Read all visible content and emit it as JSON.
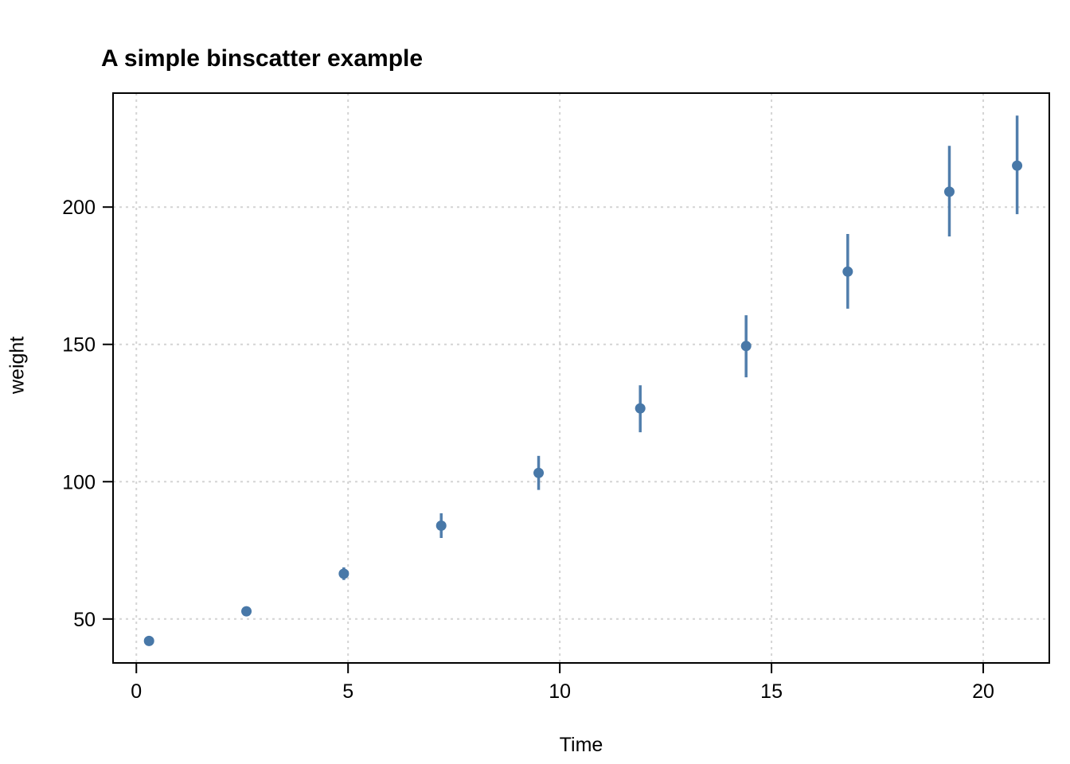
{
  "chart_data": {
    "type": "scatter",
    "title": "A simple binscatter example",
    "xlabel": "Time",
    "ylabel": "weight",
    "x_ticks": [
      0,
      5,
      10,
      15,
      20
    ],
    "y_ticks": [
      50,
      100,
      150,
      200
    ],
    "xlim": [
      -0.55,
      21.56
    ],
    "ylim": [
      34,
      241.5
    ],
    "grid": true,
    "legend": "none",
    "series": [
      {
        "name": "binned means with confidence intervals",
        "points": [
          {
            "x": 0.3,
            "y": 42.0,
            "ci_low": 41.4,
            "ci_high": 42.6
          },
          {
            "x": 2.6,
            "y": 52.8,
            "ci_low": 52.0,
            "ci_high": 53.6
          },
          {
            "x": 4.9,
            "y": 66.5,
            "ci_low": 64.2,
            "ci_high": 68.8
          },
          {
            "x": 7.2,
            "y": 84.0,
            "ci_low": 79.5,
            "ci_high": 88.5
          },
          {
            "x": 9.5,
            "y": 103.2,
            "ci_low": 97.0,
            "ci_high": 109.4
          },
          {
            "x": 11.9,
            "y": 126.7,
            "ci_low": 118.0,
            "ci_high": 135.1
          },
          {
            "x": 14.4,
            "y": 149.4,
            "ci_low": 138.0,
            "ci_high": 160.6
          },
          {
            "x": 16.8,
            "y": 176.5,
            "ci_low": 163.0,
            "ci_high": 190.2
          },
          {
            "x": 19.2,
            "y": 205.6,
            "ci_low": 189.3,
            "ci_high": 222.3
          },
          {
            "x": 20.8,
            "y": 215.1,
            "ci_low": 197.4,
            "ci_high": 233.3
          }
        ]
      }
    ],
    "colors": {
      "marker": "#4878a8",
      "errorbar": "#4878a8",
      "grid": "#d4d4d4",
      "frame": "#000000",
      "text": "#000000"
    }
  }
}
